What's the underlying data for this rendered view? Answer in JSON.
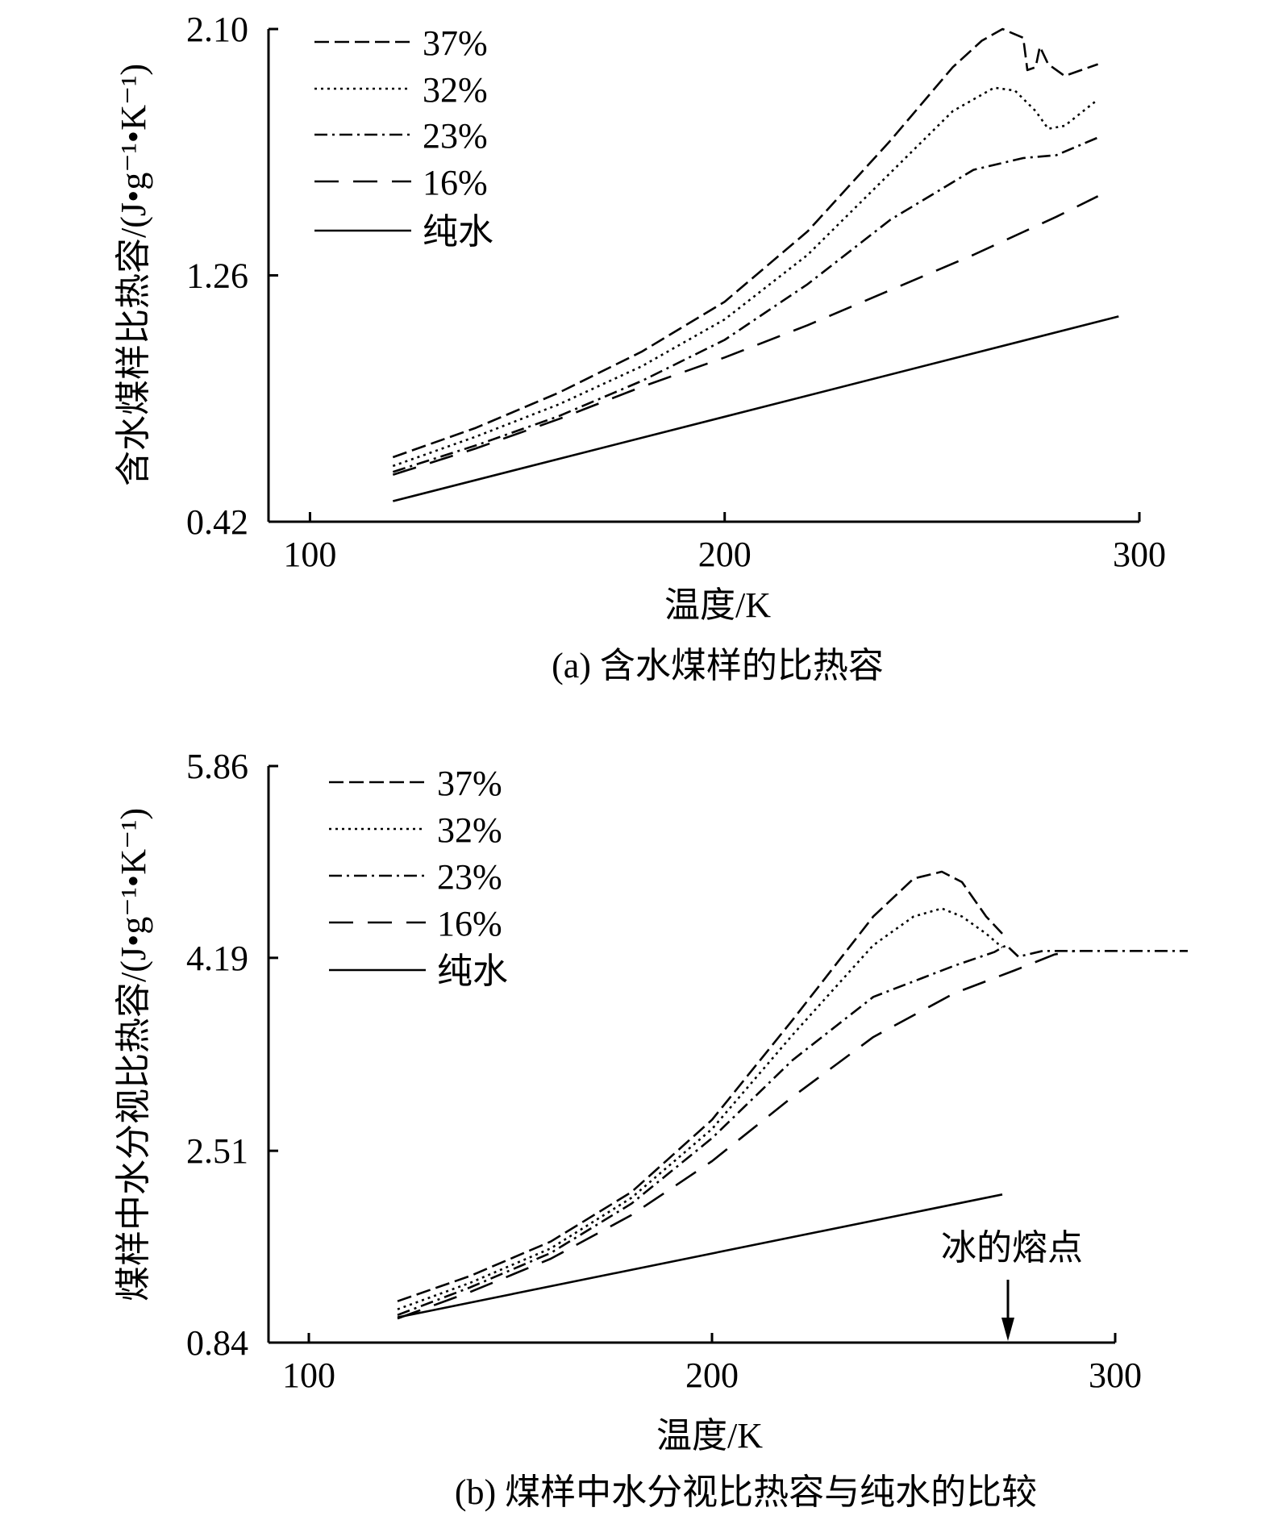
{
  "figure": {
    "panel_a_caption": "(a) 含水煤样的比热容",
    "panel_b_caption": "(b) 煤样中水分视比热容与纯水的比较"
  },
  "chart_data": [
    {
      "type": "line",
      "title": "(a) 含水煤样的比热容",
      "xlabel": "温度/K",
      "ylabel": "含水煤样比热容/(J•g⁻¹•K⁻¹)",
      "xlim": [
        90,
        300
      ],
      "ylim": [
        0.42,
        2.1
      ],
      "xticks": [
        "100",
        "200",
        "300"
      ],
      "yticks": [
        "0.42",
        "1.26",
        "2.10"
      ],
      "grid": false,
      "legend_position": "top-left",
      "series": [
        {
          "name": "37%",
          "style": "dashed",
          "x": [
            120,
            140,
            160,
            180,
            200,
            220,
            240,
            255,
            262,
            267,
            272,
            273,
            275,
            276,
            278,
            282,
            290
          ],
          "y": [
            0.64,
            0.74,
            0.86,
            1.0,
            1.17,
            1.41,
            1.72,
            1.97,
            2.06,
            2.1,
            2.07,
            1.96,
            1.97,
            2.04,
            1.98,
            1.94,
            1.98
          ]
        },
        {
          "name": "32%",
          "style": "dotted",
          "x": [
            120,
            140,
            160,
            180,
            200,
            220,
            240,
            255,
            265,
            270,
            275,
            278,
            282,
            290
          ],
          "y": [
            0.61,
            0.71,
            0.82,
            0.95,
            1.11,
            1.33,
            1.61,
            1.82,
            1.9,
            1.89,
            1.82,
            1.76,
            1.77,
            1.86
          ]
        },
        {
          "name": "23%",
          "style": "dashdot",
          "x": [
            120,
            140,
            160,
            180,
            200,
            220,
            240,
            260,
            272,
            280,
            290
          ],
          "y": [
            0.59,
            0.68,
            0.78,
            0.9,
            1.04,
            1.23,
            1.45,
            1.62,
            1.66,
            1.67,
            1.73
          ]
        },
        {
          "name": "16%",
          "style": "longdash",
          "x": [
            120,
            140,
            160,
            180,
            200,
            220,
            240,
            260,
            280,
            290
          ],
          "y": [
            0.58,
            0.67,
            0.77,
            0.88,
            0.98,
            1.09,
            1.21,
            1.33,
            1.46,
            1.53
          ]
        },
        {
          "name": "纯水",
          "style": "solid",
          "x": [
            120,
            295
          ],
          "y": [
            0.49,
            1.12
          ]
        }
      ]
    },
    {
      "type": "line",
      "title": "(b) 煤样中水分视比热容与纯水的比较",
      "xlabel": "温度/K",
      "ylabel": "煤样中水分视比热容/(J•g⁻¹•K⁻¹)",
      "xlim": [
        90,
        300
      ],
      "ylim": [
        0.84,
        5.86
      ],
      "xticks": [
        "100",
        "200",
        "300"
      ],
      "yticks": [
        "0.84",
        "2.51",
        "4.19",
        "5.86"
      ],
      "grid": false,
      "legend_position": "top-left",
      "annotation": {
        "text": "冰的熔点",
        "x": 273
      },
      "series": [
        {
          "name": "37%",
          "style": "dashed",
          "x": [
            122,
            140,
            160,
            180,
            200,
            220,
            240,
            250,
            257,
            262,
            268,
            272
          ],
          "y": [
            1.2,
            1.42,
            1.72,
            2.15,
            2.78,
            3.65,
            4.55,
            4.88,
            4.94,
            4.85,
            4.55,
            4.4
          ]
        },
        {
          "name": "32%",
          "style": "dotted",
          "x": [
            122,
            140,
            160,
            180,
            200,
            220,
            240,
            250,
            257,
            262,
            268,
            272
          ],
          "y": [
            1.13,
            1.36,
            1.66,
            2.1,
            2.7,
            3.52,
            4.3,
            4.55,
            4.62,
            4.55,
            4.4,
            4.28
          ]
        },
        {
          "name": "23%",
          "style": "dashdot",
          "x": [
            122,
            140,
            160,
            180,
            200,
            220,
            240,
            260,
            270,
            273,
            276,
            282,
            300,
            318
          ],
          "y": [
            1.08,
            1.32,
            1.62,
            2.05,
            2.62,
            3.3,
            3.85,
            4.12,
            4.24,
            4.3,
            4.2,
            4.25,
            4.25,
            4.25
          ]
        },
        {
          "name": "16%",
          "style": "longdash",
          "x": [
            122,
            140,
            160,
            180,
            200,
            220,
            240,
            260,
            275,
            285,
            290
          ],
          "y": [
            1.05,
            1.28,
            1.57,
            1.95,
            2.42,
            2.98,
            3.5,
            3.88,
            4.08,
            4.22,
            4.25
          ]
        },
        {
          "name": "纯水",
          "style": "solid",
          "x": [
            122,
            272
          ],
          "y": [
            1.06,
            2.13
          ]
        }
      ]
    }
  ]
}
